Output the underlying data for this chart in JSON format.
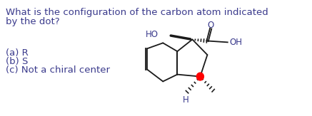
{
  "question_line1": "What is the configuration of the carbon atom indicated",
  "question_line2": "by the dot?",
  "answer_a": "(a) R",
  "answer_b": "(b) S",
  "answer_c": "(c) Not a chiral center",
  "text_color": "#3a3a8c",
  "background_color": "#ffffff",
  "font_size_question": 9.5,
  "font_size_answers": 9.5,
  "dot_color": "#ff0000",
  "structure_color": "#1a1a1a",
  "label_color": "#3a3a8c"
}
